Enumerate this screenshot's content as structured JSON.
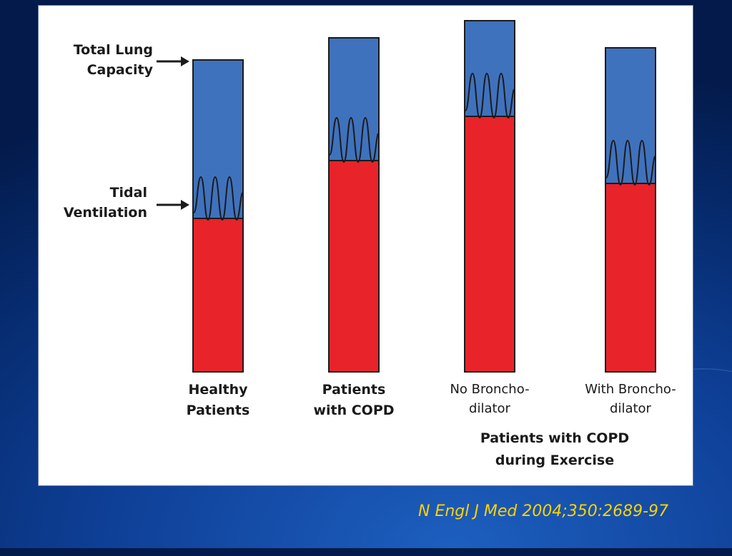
{
  "diagram": {
    "markers": [
      {
        "id": "tlc",
        "text": "Total Lung\nCapacity"
      },
      {
        "id": "tidal",
        "text": "Tidal\nVentilation"
      }
    ],
    "bars": [
      {
        "label": "Healthy\nPatients",
        "style": "bold"
      },
      {
        "label": "Patients\nwith COPD",
        "style": "bold"
      },
      {
        "label": "No Broncho-\ndilator",
        "style": "light"
      },
      {
        "label": "With Broncho-\ndilator",
        "style": "light"
      }
    ],
    "group_label": "Patients with COPD\nduring Exercise",
    "colors": {
      "capacity": "#3f72bd",
      "volume": "#e8232a",
      "outline": "#1b1b1b"
    }
  },
  "citation": "N Engl J Med 2004;350:2689-97"
}
